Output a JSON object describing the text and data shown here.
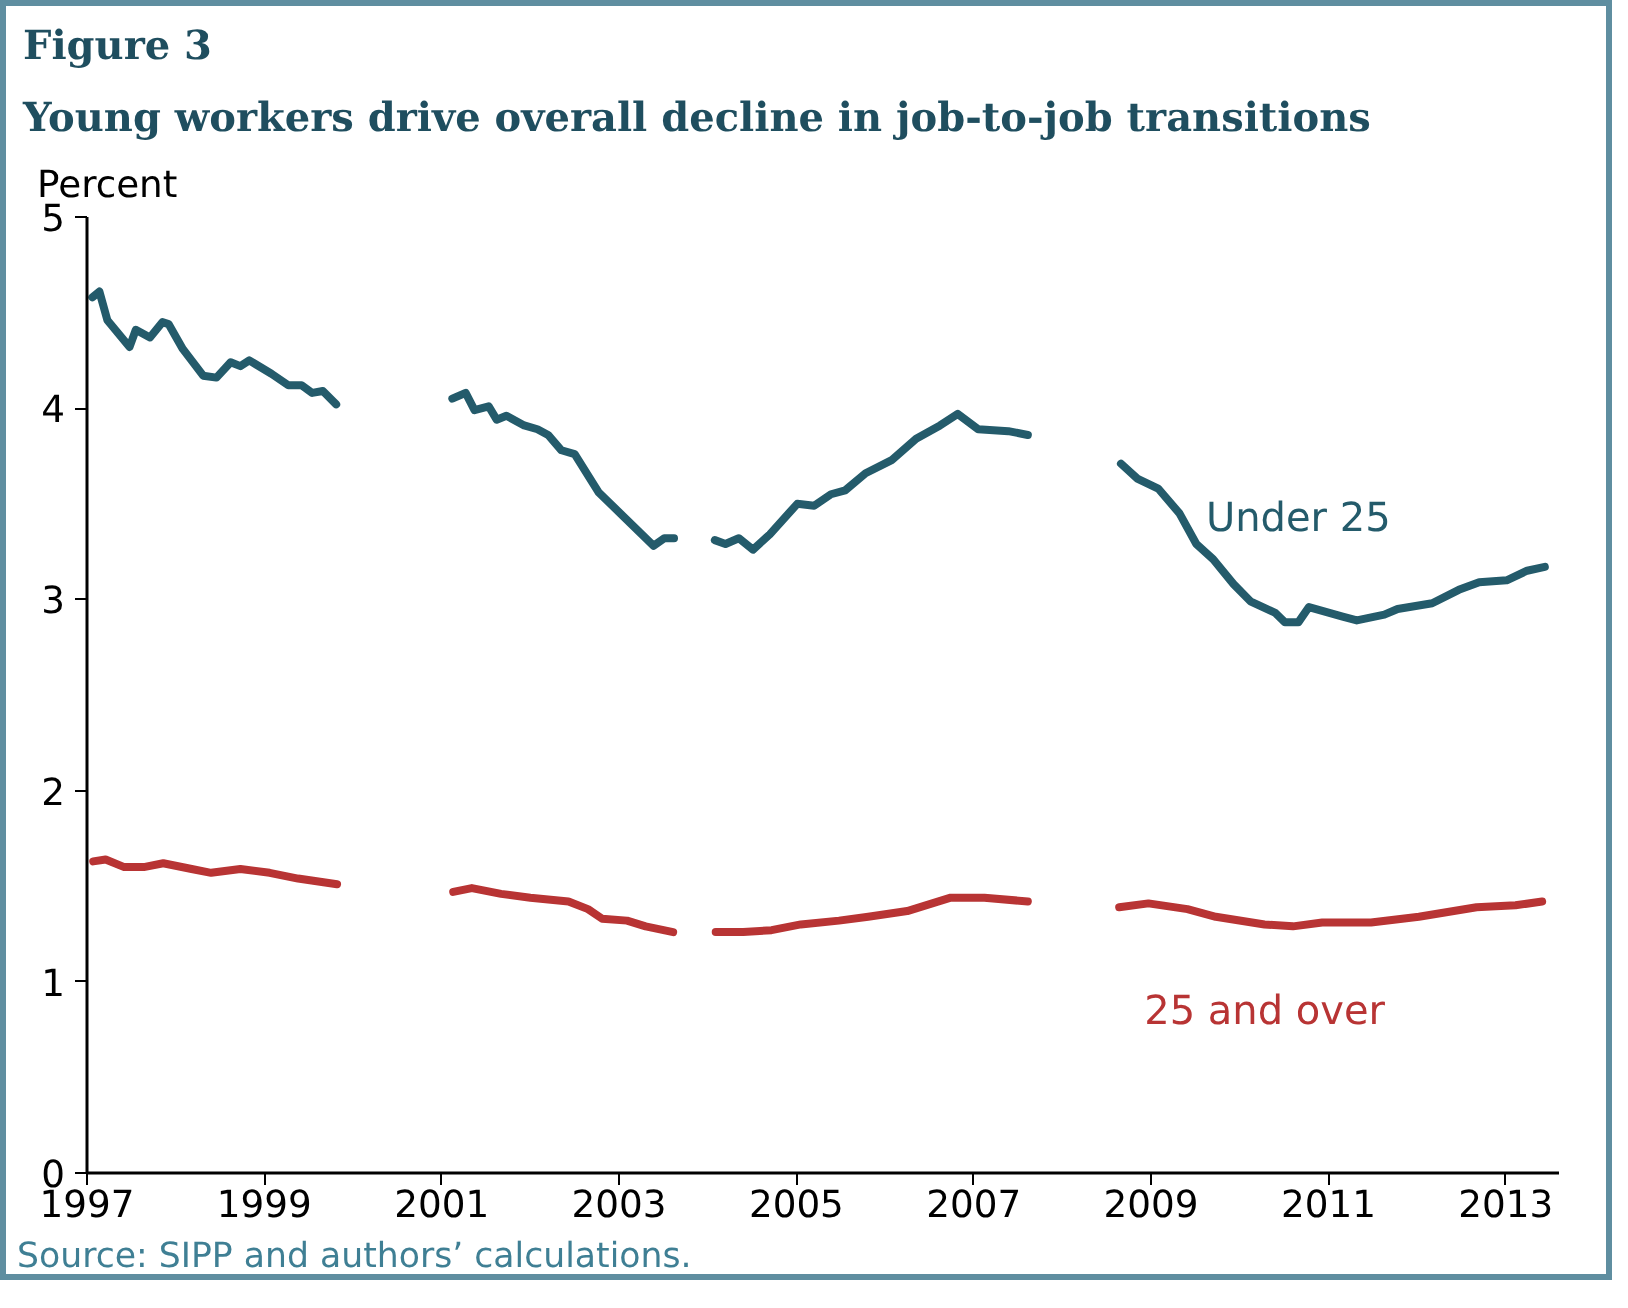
{
  "chart_data": {
    "type": "line",
    "title": "Figure 3",
    "subtitle": "Young workers drive overall decline in job-to-job transitions",
    "ylabel": "Percent",
    "xlim": [
      1997,
      2013.6
    ],
    "xticks": [
      1997,
      1999,
      2001,
      2003,
      2005,
      2007,
      2009,
      2011,
      2013
    ],
    "ylim": [
      0,
      5
    ],
    "yticks": [
      0,
      1,
      2,
      3,
      4,
      5
    ],
    "grid": false,
    "legend": false,
    "marker": "none",
    "line_style": "solid",
    "annotations": [
      "Source: SIPP and authors’ calculations."
    ],
    "series": [
      {
        "name": "Under 25",
        "color": "#245b6b",
        "x": [
          1997.06,
          1997.14,
          1997.23,
          1997.48,
          1997.55,
          1997.71,
          1997.85,
          1997.92,
          1998.08,
          1998.31,
          1998.46,
          1998.62,
          1998.73,
          1998.83,
          1999.08,
          1999.27,
          1999.42,
          1999.54,
          1999.66,
          1999.81,
          2000.5,
          2001.12,
          2001.27,
          2001.37,
          2001.53,
          2001.62,
          2001.73,
          2001.93,
          2002.08,
          2002.2,
          2002.35,
          2002.5,
          2002.77,
          2003.08,
          2003.39,
          2003.51,
          2003.62,
          2003.85,
          2004.08,
          2004.2,
          2004.35,
          2004.51,
          2004.7,
          2005.01,
          2005.2,
          2005.39,
          2005.55,
          2005.78,
          2006.08,
          2006.35,
          2006.62,
          2006.82,
          2007.05,
          2007.39,
          2007.61,
          2008.1,
          2008.66,
          2008.85,
          2009.08,
          2009.32,
          2009.51,
          2009.7,
          2009.93,
          2010.12,
          2010.4,
          2010.51,
          2010.66,
          2010.78,
          2011.16,
          2011.32,
          2011.63,
          2011.78,
          2012.17,
          2012.47,
          2012.7,
          2013.01,
          2013.24,
          2013.44
        ],
        "values": [
          4.58,
          4.61,
          4.46,
          4.32,
          4.41,
          4.37,
          4.45,
          4.44,
          4.31,
          4.17,
          4.16,
          4.24,
          4.22,
          4.25,
          4.18,
          4.12,
          4.12,
          4.08,
          4.09,
          4.02,
          null,
          4.05,
          4.08,
          3.99,
          4.01,
          3.94,
          3.96,
          3.91,
          3.89,
          3.86,
          3.78,
          3.76,
          3.56,
          3.42,
          3.28,
          3.32,
          3.32,
          null,
          3.31,
          3.29,
          3.32,
          3.26,
          3.34,
          3.5,
          3.49,
          3.55,
          3.57,
          3.66,
          3.73,
          3.84,
          3.91,
          3.97,
          3.89,
          3.88,
          3.86,
          null,
          3.71,
          3.63,
          3.58,
          3.45,
          3.29,
          3.21,
          3.08,
          2.99,
          2.93,
          2.88,
          2.88,
          2.96,
          2.91,
          2.89,
          2.92,
          2.95,
          2.98,
          3.05,
          3.09,
          3.1,
          3.15,
          3.17
        ]
      },
      {
        "name": "25 and over",
        "color": "#b83434",
        "x": [
          1997.07,
          1997.21,
          1997.42,
          1997.64,
          1997.86,
          1998.18,
          1998.4,
          1998.73,
          1999.06,
          1999.38,
          1999.82,
          2000.5,
          2001.13,
          2001.34,
          2001.67,
          2002.0,
          2002.43,
          2002.65,
          2002.81,
          2003.09,
          2003.3,
          2003.61,
          2003.85,
          2004.09,
          2004.4,
          2004.72,
          2005.05,
          2005.48,
          2005.81,
          2006.25,
          2006.74,
          2007.12,
          2007.61,
          2008.1,
          2008.64,
          2008.97,
          2009.41,
          2009.73,
          2010.28,
          2010.6,
          2010.93,
          2011.48,
          2012.02,
          2012.67,
          2013.11,
          2013.41
        ],
        "values": [
          1.63,
          1.64,
          1.6,
          1.6,
          1.62,
          1.59,
          1.57,
          1.59,
          1.57,
          1.54,
          1.51,
          null,
          1.47,
          1.49,
          1.46,
          1.44,
          1.42,
          1.38,
          1.33,
          1.32,
          1.29,
          1.26,
          null,
          1.26,
          1.26,
          1.27,
          1.3,
          1.32,
          1.34,
          1.37,
          1.44,
          1.44,
          1.42,
          null,
          1.39,
          1.41,
          1.38,
          1.34,
          1.3,
          1.29,
          1.31,
          1.31,
          1.34,
          1.39,
          1.4,
          1.42
        ]
      }
    ]
  }
}
